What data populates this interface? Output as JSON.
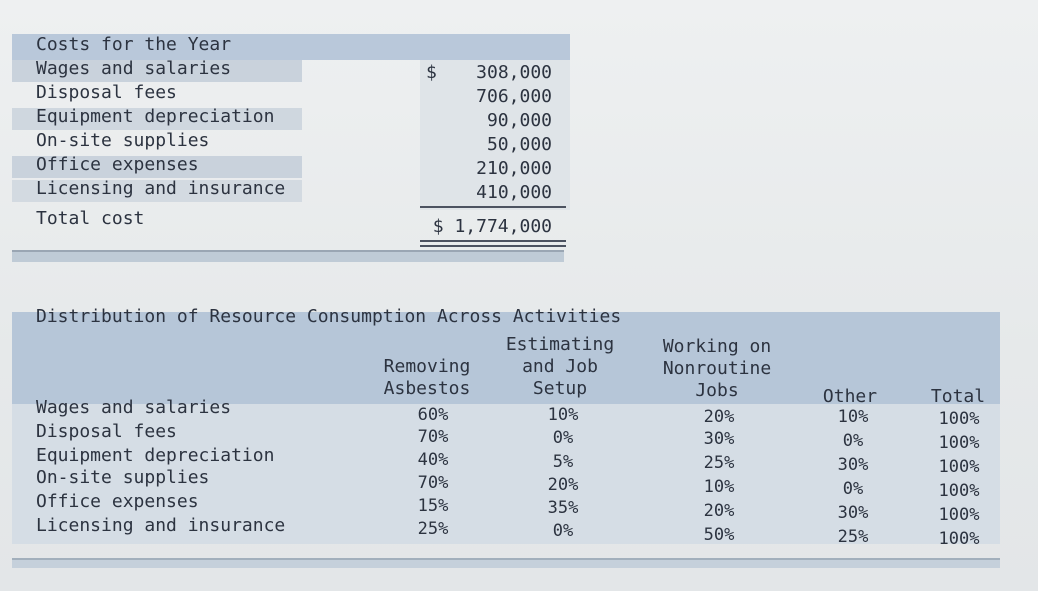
{
  "costs": {
    "header": "Costs for the Year",
    "currency_symbol": "$",
    "items": [
      {
        "label": "Wages and salaries",
        "value": "308,000"
      },
      {
        "label": "Disposal fees",
        "value": "706,000"
      },
      {
        "label": "Equipment depreciation",
        "value": "90,000"
      },
      {
        "label": "On-site supplies",
        "value": "50,000"
      },
      {
        "label": "Office expenses",
        "value": "210,000"
      },
      {
        "label": "Licensing and insurance",
        "value": "410,000"
      }
    ],
    "total_label": "Total cost",
    "total_value": "$ 1,774,000"
  },
  "distribution": {
    "title": "Distribution of Resource Consumption Across Activities",
    "columns": [
      "Removing\nAsbestos",
      "Estimating\nand Job\nSetup",
      "Working on\nNonroutine\nJobs",
      "Other",
      "Total"
    ],
    "rows": [
      {
        "label": "Wages and salaries",
        "values": [
          "60%",
          "10%",
          "20%",
          "10%",
          "100%"
        ]
      },
      {
        "label": "Disposal fees",
        "values": [
          "70%",
          "0%",
          "30%",
          "0%",
          "100%"
        ]
      },
      {
        "label": "Equipment depreciation",
        "values": [
          "40%",
          "5%",
          "25%",
          "30%",
          "100%"
        ]
      },
      {
        "label": "On-site supplies",
        "values": [
          "70%",
          "20%",
          "10%",
          "0%",
          "100%"
        ]
      },
      {
        "label": "Office expenses",
        "values": [
          "15%",
          "35%",
          "20%",
          "30%",
          "100%"
        ]
      },
      {
        "label": "Licensing and insurance",
        "values": [
          "25%",
          "0%",
          "50%",
          "25%",
          "100%"
        ]
      }
    ]
  }
}
